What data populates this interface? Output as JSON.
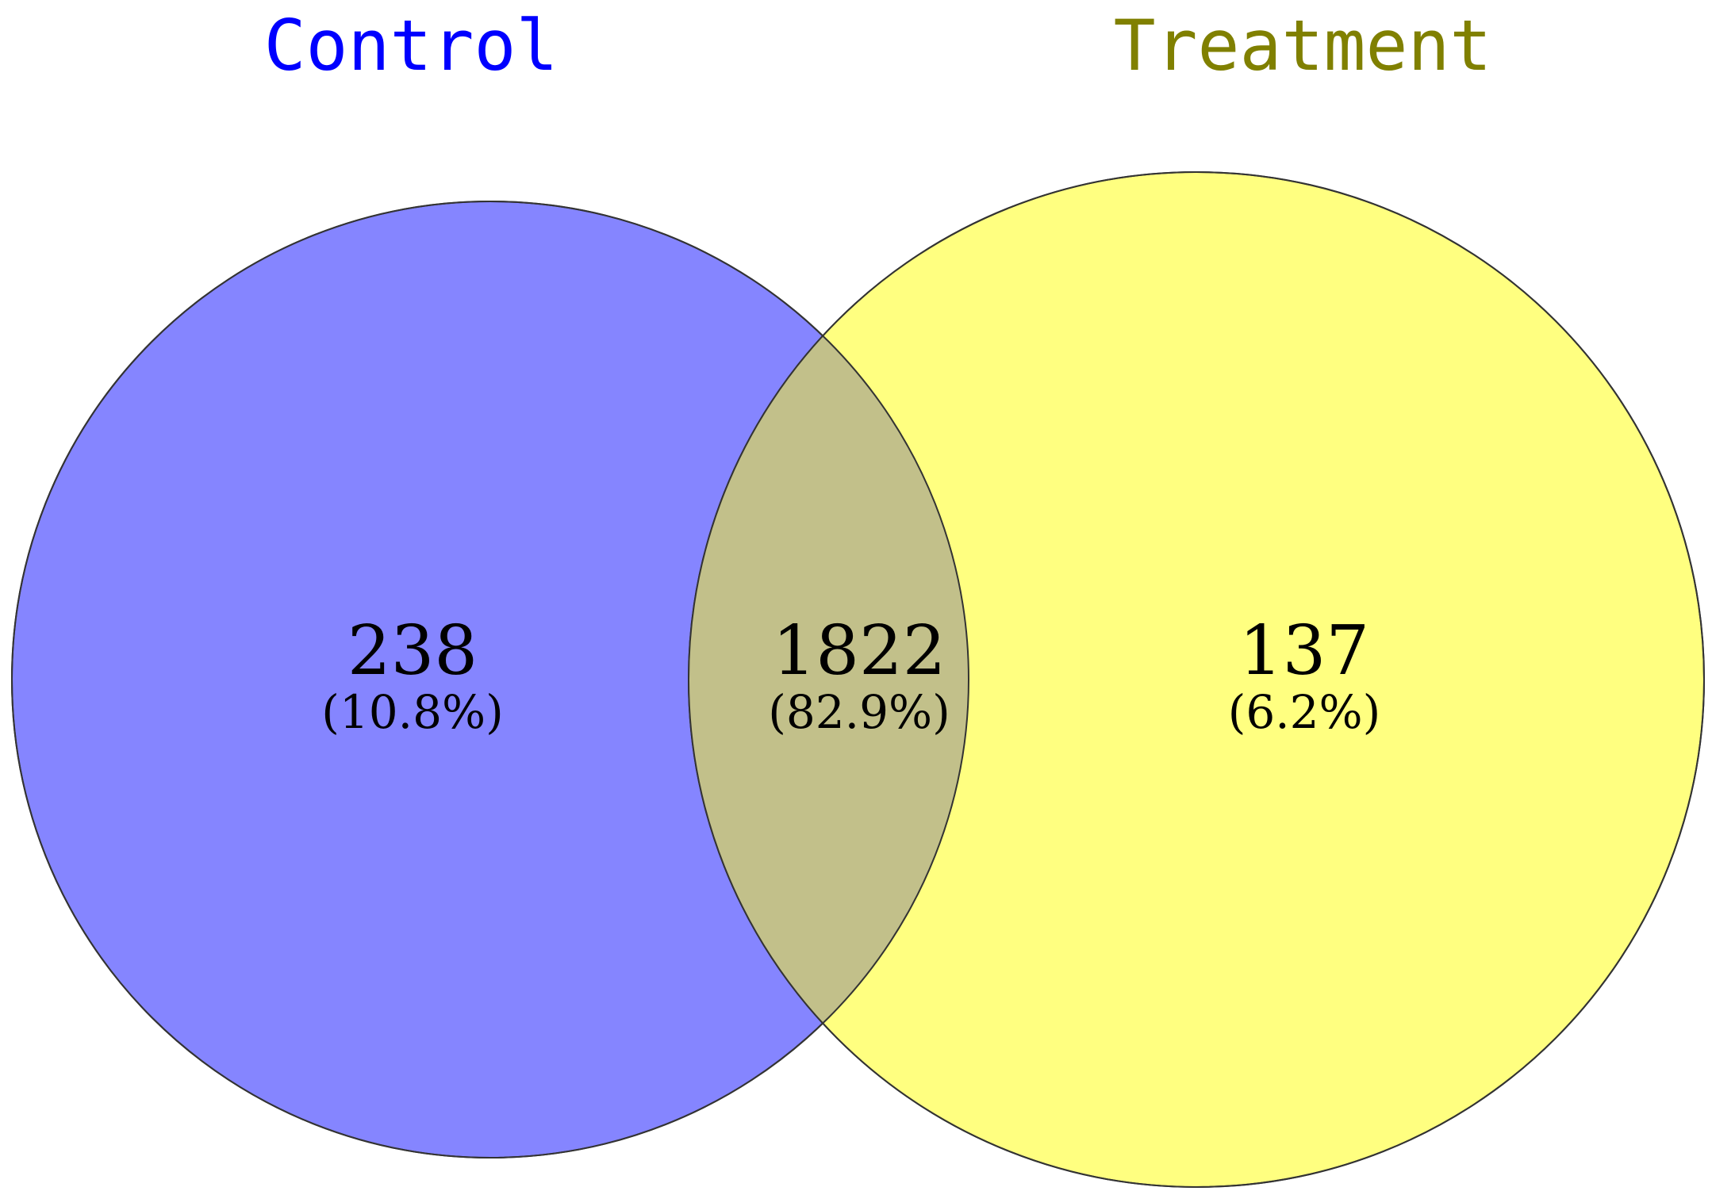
{
  "diagram": {
    "type": "venn-2",
    "sets": [
      {
        "key": "left",
        "label": "Control",
        "label_color": "#0000ff",
        "fill_color": "#8585ff"
      },
      {
        "key": "right",
        "label": "Treatment",
        "label_color": "#808000",
        "fill_color": "#ffff80"
      }
    ],
    "overlap_fill_color": "#c2c08a",
    "outline_color": "#333333",
    "regions": {
      "left_only": {
        "count": "238",
        "percent": "(10.8%)"
      },
      "both": {
        "count": "1822",
        "percent": "(82.9%)"
      },
      "right_only": {
        "count": "137",
        "percent": "(6.2%)"
      }
    }
  }
}
